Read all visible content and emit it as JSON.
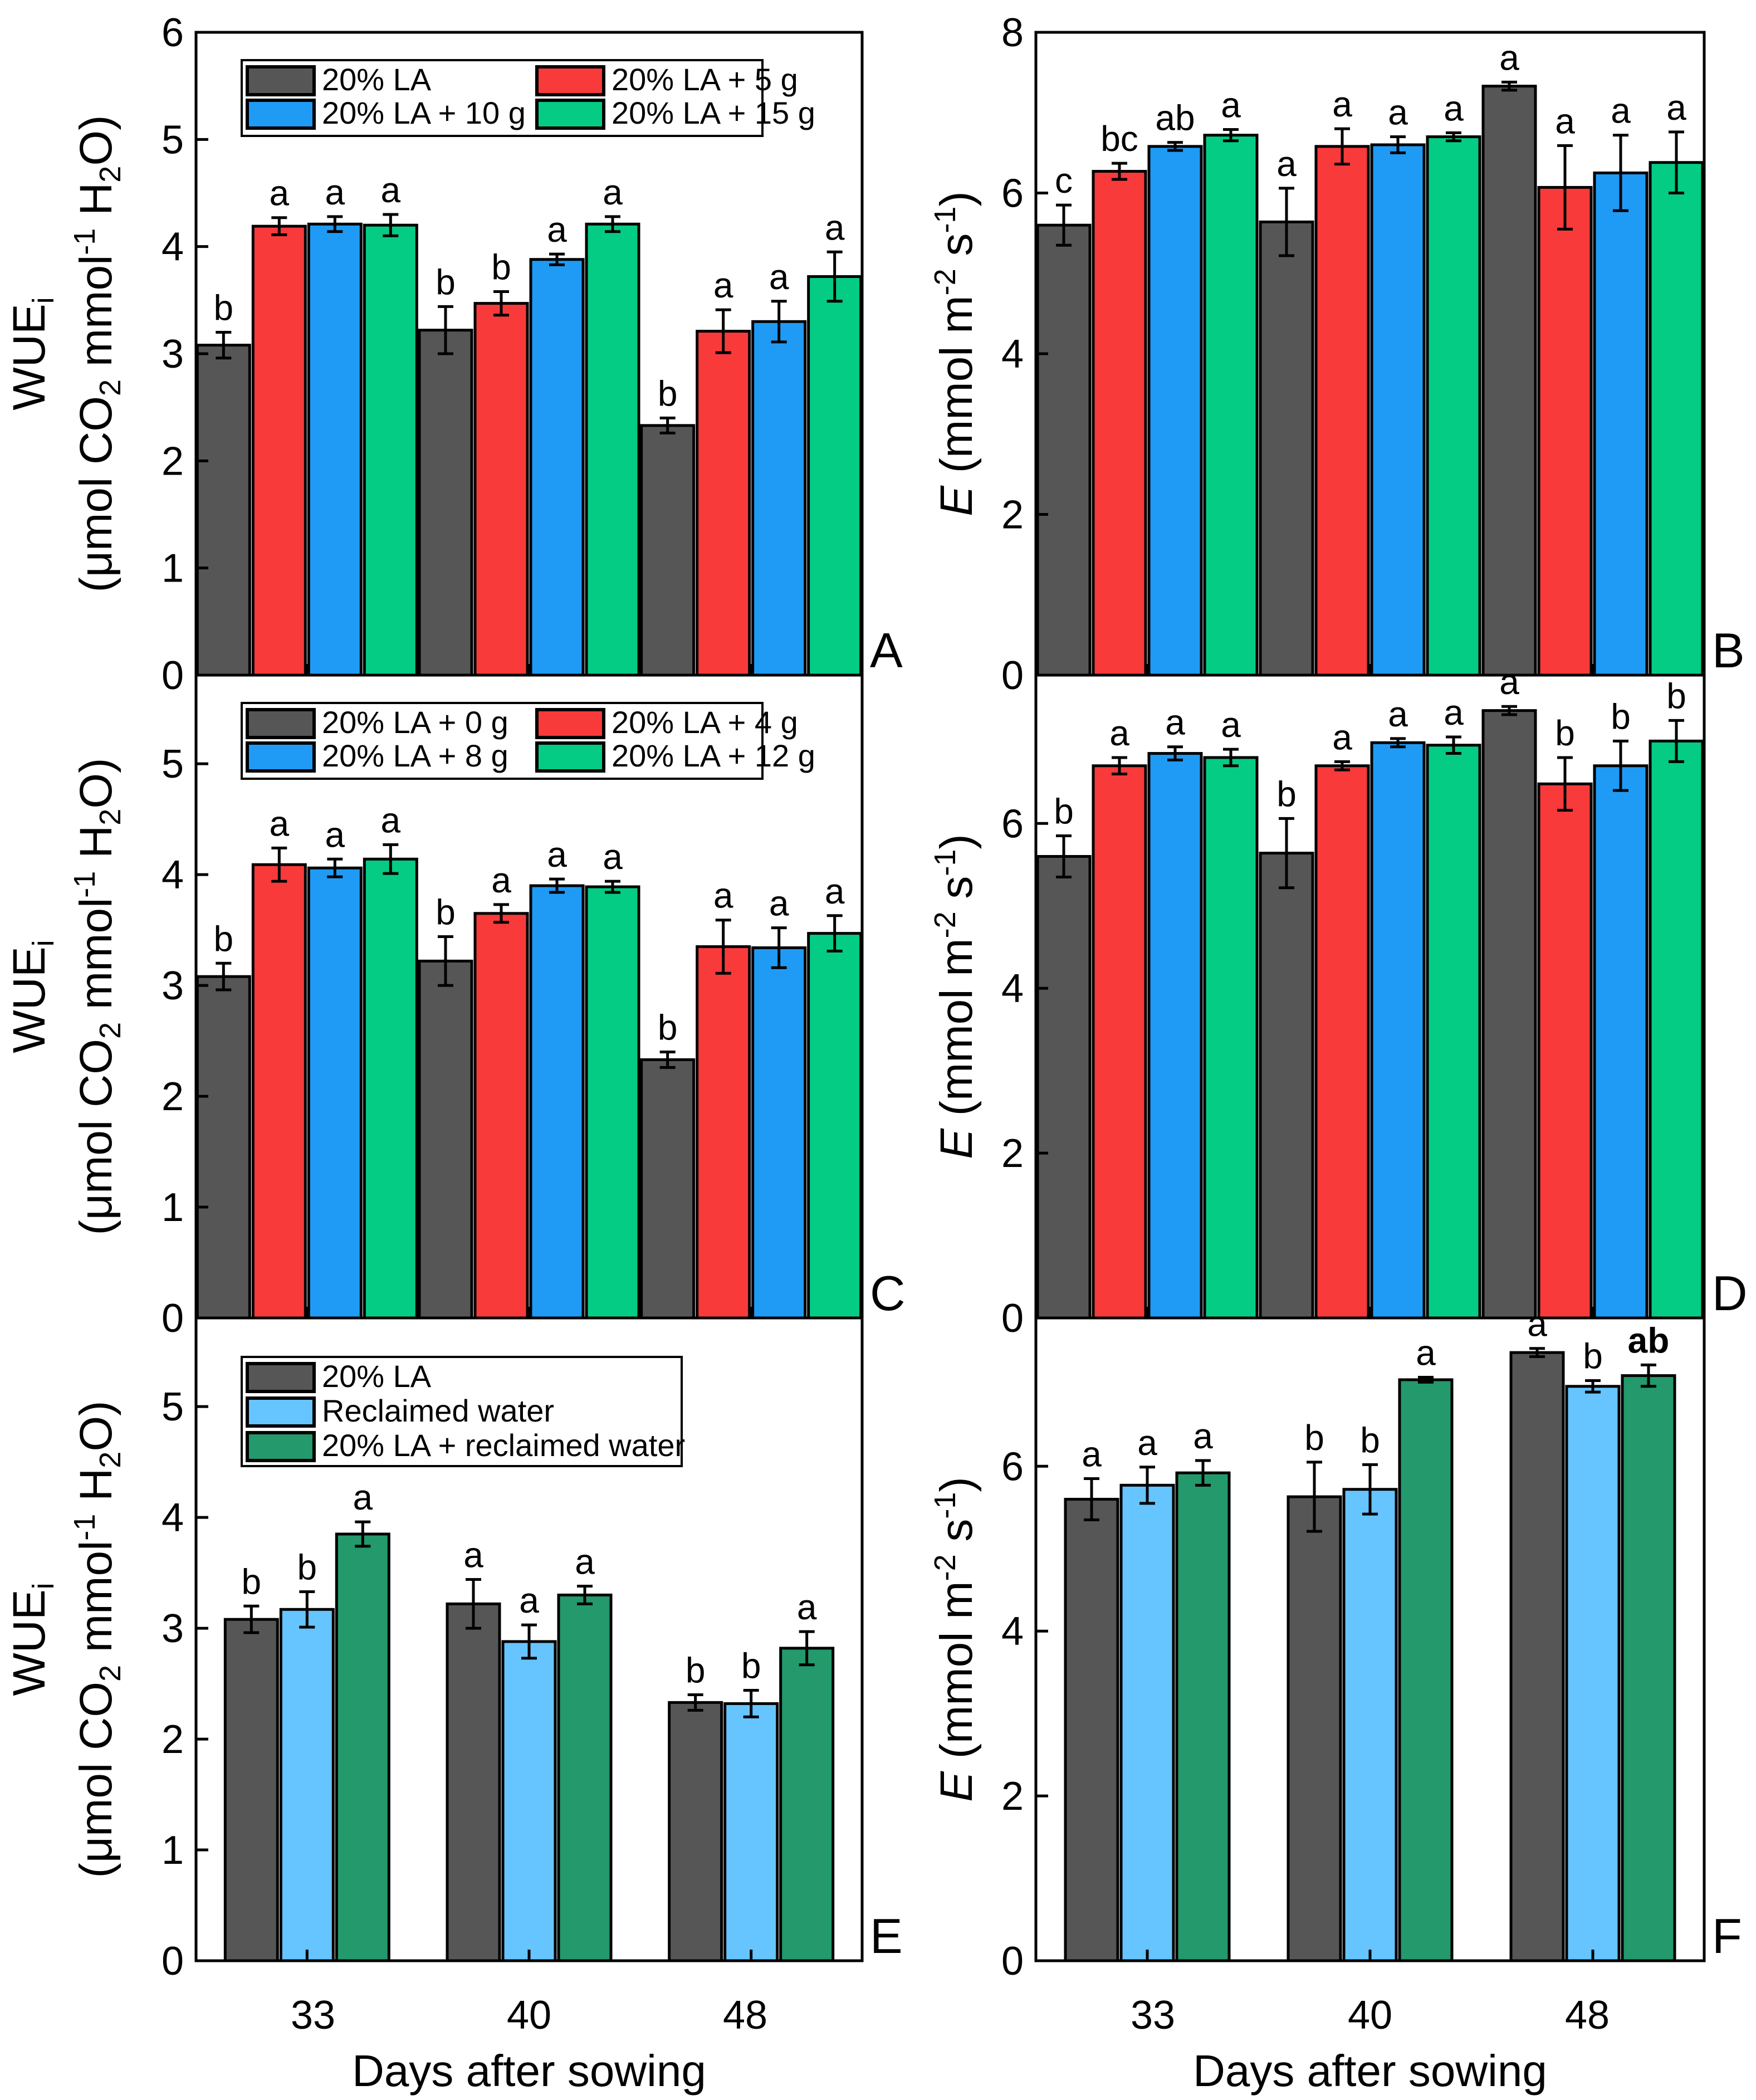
{
  "figure": {
    "xlabel": "Days after sowing",
    "x_tick_labels": [
      "33",
      "40",
      "48"
    ]
  },
  "chart_data": [
    {
      "panel": "A",
      "type": "bar",
      "title": "",
      "ylabel_main": "WUE",
      "ylabel_main_sub": "i",
      "ylabel_unit": "(μmol CO2 mmol-1 H2O)",
      "ylabel_parts": {
        "open": "(",
        "mu": "μ",
        "a": "mol CO",
        "sub1": "2",
        "b": " mmol",
        "sup": "-1",
        "c": " H",
        "sub2": "2",
        "d": "O)"
      },
      "ylim": [
        0,
        6
      ],
      "yticks": [
        "0",
        "1",
        "2",
        "3",
        "4",
        "5",
        "6"
      ],
      "categories": [
        "33",
        "40",
        "48"
      ],
      "series": [
        {
          "name": "20% LA",
          "color": "#565656",
          "values": [
            3.08,
            3.22,
            2.33
          ],
          "errors": [
            0.12,
            0.22,
            0.07
          ],
          "labels": [
            "b",
            "b",
            "b"
          ]
        },
        {
          "name": "20% LA + 5 g",
          "color": "#f93a3a",
          "values": [
            4.19,
            3.47,
            3.21
          ],
          "errors": [
            0.08,
            0.11,
            0.2
          ],
          "labels": [
            "a",
            "b",
            "a"
          ]
        },
        {
          "name": "20% LA + 10 g",
          "color": "#1f9bf6",
          "values": [
            4.21,
            3.88,
            3.3
          ],
          "errors": [
            0.07,
            0.05,
            0.19
          ],
          "labels": [
            "a",
            "a",
            "a"
          ]
        },
        {
          "name": "20% LA + 15 g",
          "color": "#04cc84",
          "values": [
            4.2,
            4.21,
            3.72
          ],
          "errors": [
            0.1,
            0.07,
            0.23
          ],
          "labels": [
            "a",
            "a",
            "a"
          ]
        }
      ],
      "legend": {
        "placement": "top",
        "columns": 2
      },
      "panel_letter": "A"
    },
    {
      "panel": "B",
      "type": "bar",
      "ylabel_italic": "E",
      "ylabel_unit": "(mmol m-2 s-1)",
      "ylabel_parts": {
        "a": " (mmol m",
        "sup1": "-2",
        "b": " s",
        "sup2": "-1",
        "c": ")"
      },
      "ylim": [
        0,
        8
      ],
      "yticks": [
        "0",
        "2",
        "4",
        "6",
        "8"
      ],
      "categories": [
        "33",
        "40",
        "48"
      ],
      "series": [
        {
          "name": "20% LA",
          "color": "#565656",
          "values": [
            5.6,
            5.64,
            7.33
          ],
          "errors": [
            0.25,
            0.42,
            0.05
          ],
          "labels": [
            "c",
            "a",
            "a"
          ]
        },
        {
          "name": "20% LA + 5 g",
          "color": "#f93a3a",
          "values": [
            6.27,
            6.58,
            6.07
          ],
          "errors": [
            0.1,
            0.22,
            0.52
          ],
          "labels": [
            "bc",
            "a",
            "a"
          ]
        },
        {
          "name": "20% LA + 10 g",
          "color": "#1f9bf6",
          "values": [
            6.58,
            6.6,
            6.25
          ],
          "errors": [
            0.05,
            0.1,
            0.47
          ],
          "labels": [
            "ab",
            "a",
            "a"
          ]
        },
        {
          "name": "20% LA + 15 g",
          "color": "#04cc84",
          "values": [
            6.72,
            6.7,
            6.38
          ],
          "errors": [
            0.07,
            0.05,
            0.38
          ],
          "labels": [
            "a",
            "a",
            "a"
          ]
        }
      ],
      "panel_letter": "B"
    },
    {
      "panel": "C",
      "type": "bar",
      "ylabel_main": "WUE",
      "ylabel_main_sub": "i",
      "ylabel_unit": "(μmol CO2 mmol-1 H2O)",
      "ylabel_parts": {
        "open": "(",
        "mu": "μ",
        "a": "mol CO",
        "sub1": "2",
        "b": " mmol",
        "sup": "-1",
        "c": " H",
        "sub2": "2",
        "d": "O)"
      },
      "ylim": [
        0,
        5.8
      ],
      "yticks": [
        "0",
        "1",
        "2",
        "3",
        "4",
        "5"
      ],
      "categories": [
        "33",
        "40",
        "48"
      ],
      "series": [
        {
          "name": "20% LA + 0 g",
          "color": "#565656",
          "values": [
            3.08,
            3.22,
            2.33
          ],
          "errors": [
            0.12,
            0.22,
            0.07
          ],
          "labels": [
            "b",
            "b",
            "b"
          ]
        },
        {
          "name": "20% LA + 4 g",
          "color": "#f93a3a",
          "values": [
            4.09,
            3.65,
            3.35
          ],
          "errors": [
            0.15,
            0.08,
            0.24
          ],
          "labels": [
            "a",
            "a",
            "a"
          ]
        },
        {
          "name": "20% LA + 8 g",
          "color": "#1f9bf6",
          "values": [
            4.06,
            3.9,
            3.34
          ],
          "errors": [
            0.08,
            0.06,
            0.18
          ],
          "labels": [
            "a",
            "a",
            "a"
          ]
        },
        {
          "name": "20% LA + 12 g",
          "color": "#04cc84",
          "values": [
            4.14,
            3.89,
            3.47
          ],
          "errors": [
            0.13,
            0.05,
            0.16
          ],
          "labels": [
            "a",
            "a",
            "a"
          ]
        }
      ],
      "legend": {
        "placement": "top",
        "columns": 2
      },
      "panel_letter": "C"
    },
    {
      "panel": "D",
      "type": "bar",
      "ylabel_italic": "E",
      "ylabel_unit": "(mmol m-2 s-1)",
      "ylabel_parts": {
        "a": " (mmol m",
        "sup1": "-2",
        "b": " s",
        "sup2": "-1",
        "c": ")"
      },
      "ylim": [
        0,
        7.8
      ],
      "yticks": [
        "0",
        "2",
        "4",
        "6"
      ],
      "categories": [
        "33",
        "40",
        "48"
      ],
      "series": [
        {
          "name": "20% LA + 0 g",
          "color": "#565656",
          "values": [
            5.6,
            5.64,
            7.37
          ],
          "errors": [
            0.25,
            0.42,
            0.05
          ],
          "labels": [
            "b",
            "b",
            "a"
          ]
        },
        {
          "name": "20% LA + 4 g",
          "color": "#f93a3a",
          "values": [
            6.7,
            6.7,
            6.48
          ],
          "errors": [
            0.1,
            0.05,
            0.32
          ],
          "labels": [
            "a",
            "a",
            "b"
          ]
        },
        {
          "name": "20% LA + 8 g",
          "color": "#1f9bf6",
          "values": [
            6.85,
            6.98,
            6.7
          ],
          "errors": [
            0.08,
            0.05,
            0.3
          ],
          "labels": [
            "a",
            "a",
            "b"
          ]
        },
        {
          "name": "20% LA + 12 g",
          "color": "#04cc84",
          "values": [
            6.8,
            6.95,
            7.0
          ],
          "errors": [
            0.1,
            0.1,
            0.25
          ],
          "labels": [
            "a",
            "a",
            "b"
          ]
        }
      ],
      "panel_letter": "D"
    },
    {
      "panel": "E",
      "type": "bar",
      "ylabel_main": "WUE",
      "ylabel_main_sub": "i",
      "ylabel_unit": "(μmol CO2 mmol-1 H2O)",
      "ylabel_parts": {
        "open": "(",
        "mu": "μ",
        "a": "mol CO",
        "sub1": "2",
        "b": " mmol",
        "sup": "-1",
        "c": " H",
        "sub2": "2",
        "d": "O)"
      },
      "ylim": [
        0,
        5.8
      ],
      "yticks": [
        "0",
        "1",
        "2",
        "3",
        "4",
        "5"
      ],
      "categories": [
        "33",
        "40",
        "48"
      ],
      "series": [
        {
          "name": "20% LA",
          "color": "#565656",
          "values": [
            3.08,
            3.22,
            2.33
          ],
          "errors": [
            0.12,
            0.22,
            0.07
          ],
          "labels": [
            "b",
            "a",
            "b"
          ]
        },
        {
          "name": "Reclaimed water",
          "color": "#66c4ff",
          "values": [
            3.17,
            2.88,
            2.32
          ],
          "errors": [
            0.16,
            0.15,
            0.12
          ],
          "labels": [
            "b",
            "a",
            "b"
          ]
        },
        {
          "name": "20% LA + reclaimed water",
          "color": "#23996c",
          "values": [
            3.85,
            3.3,
            2.82
          ],
          "errors": [
            0.11,
            0.08,
            0.15
          ],
          "labels": [
            "a",
            "a",
            "a"
          ]
        }
      ],
      "legend": {
        "placement": "top-left",
        "columns": 1
      },
      "panel_letter": "E"
    },
    {
      "panel": "F",
      "type": "bar",
      "ylabel_italic": "E",
      "ylabel_unit": "(mmol m-2 s-1)",
      "ylabel_parts": {
        "a": " (mmol m",
        "sup1": "-2",
        "b": " s",
        "sup2": "-1",
        "c": ")"
      },
      "ylim": [
        0,
        7.8
      ],
      "yticks": [
        "0",
        "2",
        "4",
        "6"
      ],
      "categories": [
        "33",
        "40",
        "48"
      ],
      "series": [
        {
          "name": "20% LA",
          "color": "#565656",
          "values": [
            5.6,
            5.63,
            7.38
          ],
          "errors": [
            0.25,
            0.42,
            0.05
          ],
          "labels": [
            "a",
            "b",
            "a"
          ]
        },
        {
          "name": "Reclaimed water",
          "color": "#66c4ff",
          "values": [
            5.77,
            5.72,
            6.97
          ],
          "errors": [
            0.22,
            0.3,
            0.07
          ],
          "labels": [
            "a",
            "b",
            "b"
          ]
        },
        {
          "name": "20% LA + reclaimed water",
          "color": "#23996c",
          "values": [
            5.92,
            7.05,
            7.1
          ],
          "errors": [
            0.15,
            0.03,
            0.13
          ],
          "labels": [
            "a",
            "a",
            "ab"
          ],
          "bold_labels": [
            false,
            false,
            true
          ]
        }
      ],
      "panel_letter": "F"
    }
  ]
}
